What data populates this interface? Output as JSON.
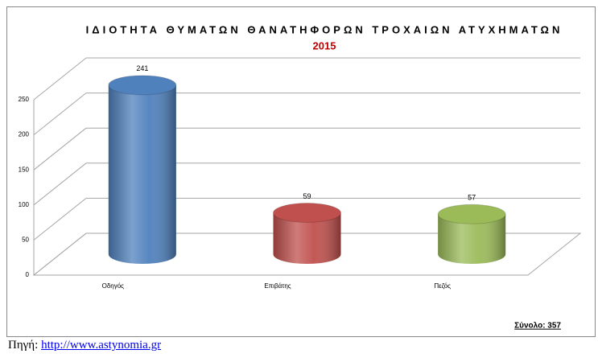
{
  "chart_data": {
    "type": "cylinder",
    "title": "ΙΔΙΟΤΗΤΑ ΘΥΜΑΤΩΝ ΘΑΝΑΤΗΦΟΡΩΝ ΤΡΟΧΑΙΩΝ ΑΤΥΧΗΜΑΤΩΝ",
    "subtitle": "2015",
    "categories": [
      "Οδηγός",
      "Επιβάτης",
      "Πεζός"
    ],
    "values": [
      241,
      59,
      57
    ],
    "colors": [
      "#4f81bd",
      "#c0504d",
      "#9bbb59"
    ],
    "ylim": [
      0,
      250
    ],
    "yticks": [
      0,
      50,
      100,
      150,
      200,
      250
    ],
    "grid": true,
    "annotation": "Σύνολο: 357"
  },
  "source": {
    "label": "Πηγή:",
    "url": "http://www.astynomia.gr"
  }
}
